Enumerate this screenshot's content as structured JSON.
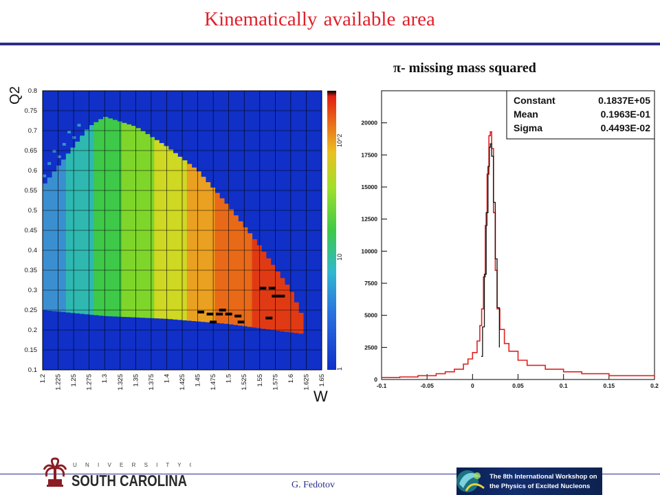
{
  "slide": {
    "title": "Kinematically available area",
    "author": "G. Fedotov"
  },
  "chart_data": [
    {
      "type": "heatmap",
      "title": "",
      "xlabel": "W",
      "ylabel": "Q2",
      "xlim": [
        1.2,
        1.65
      ],
      "ylim": [
        0.1,
        0.8
      ],
      "x_ticks": [
        "1.2",
        "1.225",
        "1.25",
        "1.275",
        "1.3",
        "1.325",
        "1.35",
        "1.375",
        "1.4",
        "1.425",
        "1.45",
        "1.475",
        "1.5",
        "1.525",
        "1.55",
        "1.575",
        "1.6",
        "1.625",
        "1.65"
      ],
      "y_ticks": [
        "0.1",
        "0.15",
        "0.2",
        "0.25",
        "0.3",
        "0.35",
        "0.4",
        "0.45",
        "0.5",
        "0.55",
        "0.6",
        "0.65",
        "0.7",
        "0.75",
        "0.8"
      ],
      "z_scale": "log",
      "z_ticks": [
        "1",
        "10",
        "10^2"
      ],
      "grid": true,
      "colors": {
        "background": "#1030c8",
        "grid": "#000000",
        "frame": "#000000"
      },
      "populated_region": {
        "w_min": 1.2,
        "lower_edge": [
          [
            1.2,
            0.25
          ],
          [
            1.3,
            0.235
          ],
          [
            1.4,
            0.228
          ],
          [
            1.5,
            0.215
          ],
          [
            1.57,
            0.2
          ],
          [
            1.62,
            0.19
          ]
        ],
        "upper_edge": [
          [
            1.2,
            0.56
          ],
          [
            1.25,
            0.66
          ],
          [
            1.275,
            0.71
          ],
          [
            1.3,
            0.735
          ],
          [
            1.35,
            0.71
          ],
          [
            1.4,
            0.66
          ],
          [
            1.45,
            0.6
          ],
          [
            1.5,
            0.51
          ],
          [
            1.55,
            0.41
          ],
          [
            1.6,
            0.3
          ],
          [
            1.62,
            0.23
          ]
        ]
      },
      "color_levels": [
        {
          "w_from": 1.2,
          "w_to": 1.24,
          "color": "#3a8fd0"
        },
        {
          "w_from": 1.24,
          "w_to": 1.28,
          "color": "#2fb8b0"
        },
        {
          "w_from": 1.28,
          "w_to": 1.33,
          "color": "#3ec948"
        },
        {
          "w_from": 1.33,
          "w_to": 1.38,
          "color": "#7ed62a"
        },
        {
          "w_from": 1.38,
          "w_to": 1.43,
          "color": "#cfd822"
        },
        {
          "w_from": 1.43,
          "w_to": 1.48,
          "color": "#eaa020"
        },
        {
          "w_from": 1.48,
          "w_to": 1.54,
          "color": "#e86a18"
        },
        {
          "w_from": 1.54,
          "w_to": 1.63,
          "color": "#e03a14"
        }
      ],
      "empty_cells": [
        [
          1.455,
          0.245
        ],
        [
          1.47,
          0.24
        ],
        [
          1.485,
          0.24
        ],
        [
          1.49,
          0.25
        ],
        [
          1.5,
          0.24
        ],
        [
          1.475,
          0.22
        ],
        [
          1.515,
          0.235
        ],
        [
          1.52,
          0.22
        ],
        [
          1.555,
          0.305
        ],
        [
          1.57,
          0.305
        ],
        [
          1.575,
          0.285
        ],
        [
          1.585,
          0.285
        ],
        [
          1.565,
          0.23
        ]
      ]
    },
    {
      "type": "line",
      "title": "π- missing mass squared",
      "xlim": [
        -0.1,
        0.2
      ],
      "ylim": [
        0,
        22500
      ],
      "x_ticks": [
        "-0.1",
        "-0.05",
        "0",
        "0.05",
        "0.1",
        "0.15",
        "0.2"
      ],
      "y_ticks": [
        "0",
        "2500",
        "5000",
        "7500",
        "10000",
        "12500",
        "15000",
        "17500",
        "20000"
      ],
      "grid": false,
      "stats_box": {
        "rows": [
          {
            "label": "Constant",
            "value": "0.1837E+05"
          },
          {
            "label": "Mean",
            "value": "0.1963E-01"
          },
          {
            "label": "Sigma",
            "value": "0.4493E-02"
          }
        ],
        "placement": "top-right"
      },
      "series": [
        {
          "color": "#e02020",
          "x": [
            -0.1,
            -0.08,
            -0.06,
            -0.04,
            -0.03,
            -0.02,
            -0.01,
            -0.005,
            0,
            0.005,
            0.008,
            0.01,
            0.012,
            0.014,
            0.016,
            0.018,
            0.0195,
            0.021,
            0.023,
            0.025,
            0.027,
            0.03,
            0.035,
            0.04,
            0.05,
            0.06,
            0.08,
            0.1,
            0.12,
            0.15,
            0.2
          ],
          "y": [
            150,
            200,
            300,
            450,
            600,
            800,
            1200,
            1600,
            2100,
            3000,
            4200,
            5500,
            8000,
            12000,
            16000,
            19000,
            19300,
            18000,
            13000,
            8500,
            5500,
            3900,
            2800,
            2200,
            1500,
            1100,
            800,
            600,
            450,
            300,
            150
          ]
        },
        {
          "color": "#101010",
          "x": [
            0.0095,
            0.011,
            0.013,
            0.015,
            0.017,
            0.0185,
            0.0196,
            0.021,
            0.023,
            0.025,
            0.027,
            0.0295
          ],
          "y": [
            1800,
            4100,
            8200,
            13000,
            16600,
            18100,
            18370,
            17400,
            13800,
            9400,
            5600,
            2500
          ]
        }
      ]
    }
  ],
  "logos": {
    "university": "UNIVERSITY OF SOUTH CAROLINA",
    "university_top": "U N I V E R S I T Y   O F",
    "university_main": "SOUTH CAROLINA",
    "workshop_line1": "The 8th International Workshop on",
    "workshop_line2": "the Physics of Excited Nucleons"
  }
}
